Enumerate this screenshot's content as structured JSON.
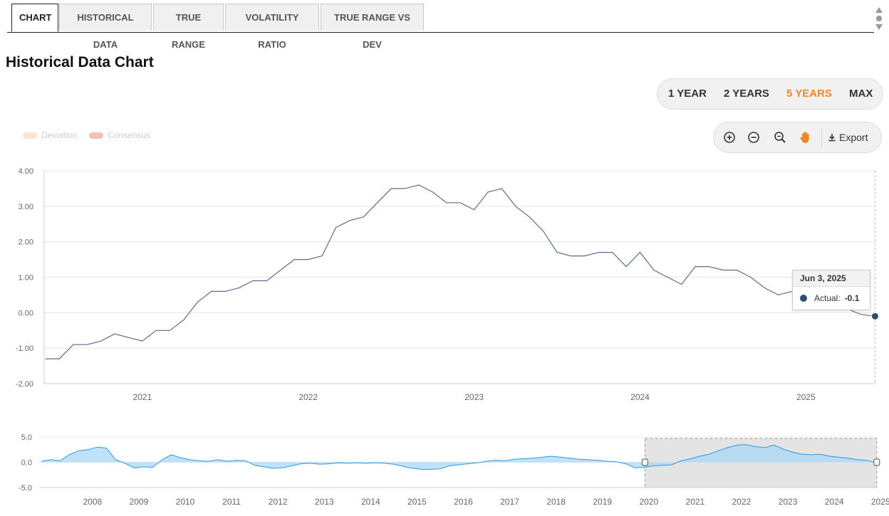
{
  "tabs": [
    {
      "label": "CHART",
      "active": true
    },
    {
      "label": "HISTORICAL DATA",
      "active": false
    },
    {
      "label": "TRUE RANGE",
      "active": false
    },
    {
      "label": "VOLATILITY RATIO",
      "active": false
    },
    {
      "label": "TRUE RANGE VS DEV",
      "active": false
    }
  ],
  "page_title": "Historical Data Chart",
  "range_buttons": [
    {
      "label": "1 YEAR",
      "selected": false
    },
    {
      "label": "2 YEARS",
      "selected": false
    },
    {
      "label": "5 YEARS",
      "selected": true
    },
    {
      "label": "MAX",
      "selected": false
    }
  ],
  "toolbar": {
    "zoom_in_icon": "plus-circle-icon",
    "zoom_out_icon": "minus-circle-icon",
    "reset_zoom_icon": "magnifier-icon",
    "pan_icon": "hand-icon",
    "export_label": "Export"
  },
  "legend": [
    {
      "label": "Deviation",
      "color": "#fbe3cf"
    },
    {
      "label": "Consensus",
      "color": "#f4c0b6"
    }
  ],
  "tooltip": {
    "date": "Jun 3, 2025",
    "series_label": "Actual:",
    "value": "-0.1"
  },
  "colors": {
    "accent": "#e8892b",
    "line": "#5a6e8c",
    "marker": "#2e4a6e",
    "nav_line": "#2a9ae0",
    "nav_fill": "#a9d8f5"
  },
  "chart_data": [
    {
      "type": "line",
      "title": "",
      "xlabel": "",
      "ylabel": "",
      "ylim": [
        -2,
        4
      ],
      "yticks": [
        "4.00",
        "3.00",
        "2.00",
        "1.00",
        "0.00",
        "-1.00",
        "-2.00"
      ],
      "xticks": [
        "2021",
        "2022",
        "2023",
        "2024",
        "2025"
      ],
      "grid": true,
      "series": [
        {
          "name": "Actual",
          "x": [
            "2020-06",
            "2020-07",
            "2020-08",
            "2020-09",
            "2020-10",
            "2020-11",
            "2020-12",
            "2021-01",
            "2021-02",
            "2021-03",
            "2021-04",
            "2021-05",
            "2021-06",
            "2021-07",
            "2021-08",
            "2021-09",
            "2021-10",
            "2021-11",
            "2021-12",
            "2022-01",
            "2022-02",
            "2022-03",
            "2022-04",
            "2022-05",
            "2022-06",
            "2022-07",
            "2022-08",
            "2022-09",
            "2022-10",
            "2022-11",
            "2022-12",
            "2023-01",
            "2023-02",
            "2023-03",
            "2023-04",
            "2023-05",
            "2023-06",
            "2023-07",
            "2023-08",
            "2023-09",
            "2023-10",
            "2023-11",
            "2023-12",
            "2024-01",
            "2024-02",
            "2024-03",
            "2024-04",
            "2024-05",
            "2024-06",
            "2024-07",
            "2024-08",
            "2024-09",
            "2024-10",
            "2024-11",
            "2024-12",
            "2025-01",
            "2025-02",
            "2025-03",
            "2025-04",
            "2025-05",
            "2025-06"
          ],
          "values": [
            -1.3,
            -1.3,
            -0.9,
            -0.9,
            -0.8,
            -0.6,
            -0.7,
            -0.8,
            -0.5,
            -0.5,
            -0.2,
            0.3,
            0.6,
            0.6,
            0.7,
            0.9,
            0.9,
            1.2,
            1.5,
            1.5,
            1.6,
            2.4,
            2.6,
            2.7,
            3.1,
            3.5,
            3.5,
            3.6,
            3.4,
            3.1,
            3.1,
            2.9,
            3.4,
            3.5,
            3.0,
            2.7,
            2.3,
            1.7,
            1.6,
            1.6,
            1.7,
            1.7,
            1.3,
            1.7,
            1.2,
            1.0,
            0.8,
            1.3,
            1.3,
            1.2,
            1.2,
            1.0,
            0.7,
            0.5,
            0.6,
            0.7,
            0.6,
            0.5,
            0.1,
            -0.05,
            -0.1
          ]
        }
      ]
    },
    {
      "type": "area",
      "title": "",
      "ylim": [
        -5,
        5
      ],
      "yticks": [
        "5.0",
        "0.0",
        "-5.0"
      ],
      "xticks": [
        "2008",
        "2009",
        "2010",
        "2011",
        "2012",
        "2013",
        "2014",
        "2015",
        "2016",
        "2017",
        "2018",
        "2019",
        "2020",
        "2021",
        "2022",
        "2023",
        "2024",
        "2025"
      ],
      "selected_range": [
        "2020-06",
        "2025-06"
      ],
      "series": [
        {
          "name": "Actual",
          "x": [
            2007.4,
            2007.6,
            2007.8,
            2008.0,
            2008.2,
            2008.4,
            2008.6,
            2008.8,
            2009.0,
            2009.2,
            2009.4,
            2009.6,
            2009.8,
            2010.0,
            2010.2,
            2010.4,
            2010.6,
            2010.8,
            2011.0,
            2011.2,
            2011.4,
            2011.6,
            2011.8,
            2012.0,
            2012.2,
            2012.4,
            2012.6,
            2012.8,
            2013.0,
            2013.2,
            2013.4,
            2013.6,
            2013.8,
            2014.0,
            2014.2,
            2014.4,
            2014.6,
            2014.8,
            2015.0,
            2015.2,
            2015.4,
            2015.6,
            2015.8,
            2016.0,
            2016.2,
            2016.4,
            2016.6,
            2016.8,
            2017.0,
            2017.2,
            2017.4,
            2017.6,
            2017.8,
            2018.0,
            2018.2,
            2018.4,
            2018.6,
            2018.8,
            2019.0,
            2019.2,
            2019.4,
            2019.6,
            2019.8,
            2020.0,
            2020.2,
            2020.4,
            2020.6,
            2020.8,
            2021.0,
            2021.2,
            2021.4,
            2021.6,
            2021.8,
            2022.0,
            2022.2,
            2022.4,
            2022.6,
            2022.8,
            2023.0,
            2023.2,
            2023.4,
            2023.6,
            2023.8,
            2024.0,
            2024.2,
            2024.4,
            2024.6,
            2024.8,
            2025.0,
            2025.2,
            2025.4
          ],
          "values": [
            0.2,
            0.5,
            0.3,
            1.5,
            2.3,
            2.5,
            3.0,
            2.8,
            0.5,
            -0.2,
            -1.1,
            -0.9,
            -1.0,
            0.5,
            1.5,
            0.9,
            0.5,
            0.3,
            0.2,
            0.5,
            0.2,
            0.4,
            0.3,
            -0.6,
            -0.9,
            -1.2,
            -1.1,
            -0.7,
            -0.3,
            -0.2,
            -0.4,
            -0.3,
            -0.1,
            -0.2,
            -0.1,
            -0.2,
            -0.1,
            -0.2,
            -0.4,
            -0.8,
            -1.2,
            -1.4,
            -1.4,
            -1.3,
            -0.7,
            -0.5,
            -0.3,
            -0.1,
            0.2,
            0.4,
            0.3,
            0.6,
            0.7,
            0.8,
            1.0,
            1.2,
            1.0,
            0.8,
            0.6,
            0.5,
            0.4,
            0.2,
            0.1,
            -0.3,
            -1.1,
            -1.0,
            -0.7,
            -0.6,
            -0.5,
            0.3,
            0.7,
            1.2,
            1.6,
            2.3,
            2.9,
            3.4,
            3.5,
            3.1,
            2.9,
            3.4,
            2.6,
            2.0,
            1.6,
            1.5,
            1.6,
            1.2,
            1.0,
            0.8,
            0.5,
            0.4,
            -0.1
          ]
        }
      ]
    }
  ]
}
